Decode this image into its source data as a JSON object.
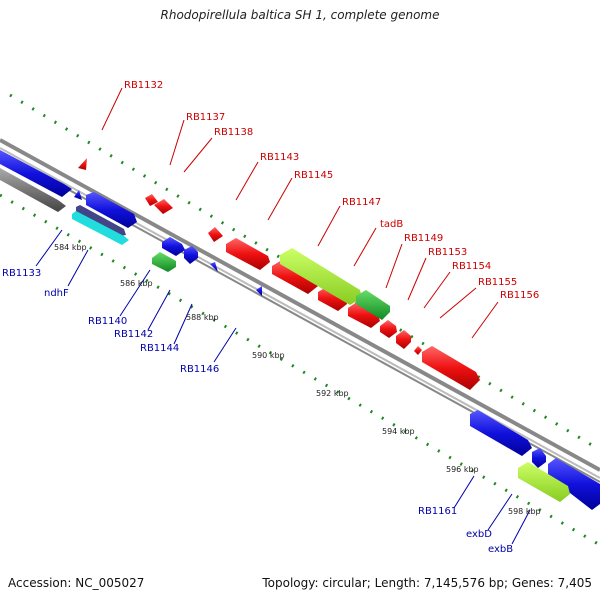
{
  "title": "Rhodopirellula baltica SH 1, complete genome",
  "accession": "Accession: NC_005027",
  "stats": "Topology: circular; Length: 7,145,576 bp; Genes: 7,405",
  "colors": {
    "backbone": "#888888",
    "red": "#ee1111",
    "blue": "#1111dd",
    "green": "#22bb33",
    "lime": "#aaee33",
    "cyan": "#22dddd",
    "gray": "#777777",
    "dots": "#228822",
    "red_label": "#cc0000",
    "blue_label": "#0000aa"
  },
  "ticks": [
    {
      "label": "584 kbp"
    },
    {
      "label": "586 kbp"
    },
    {
      "label": "588 kbp"
    },
    {
      "label": "590 kbp"
    },
    {
      "label": "592 kbp"
    },
    {
      "label": "594 kbp"
    },
    {
      "label": "596 kbp"
    },
    {
      "label": "598 kbp"
    }
  ],
  "labels_top": [
    "RB1132",
    "RB1137",
    "RB1138",
    "RB1143",
    "RB1145",
    "RB1147",
    "tadB",
    "RB1149",
    "RB1153",
    "RB1154",
    "RB1155",
    "RB1156"
  ],
  "labels_bottom": [
    "RB1133",
    "ndhF",
    "RB1140",
    "RB1142",
    "RB1144",
    "RB1146",
    "RB1161",
    "exbD",
    "exbB"
  ]
}
